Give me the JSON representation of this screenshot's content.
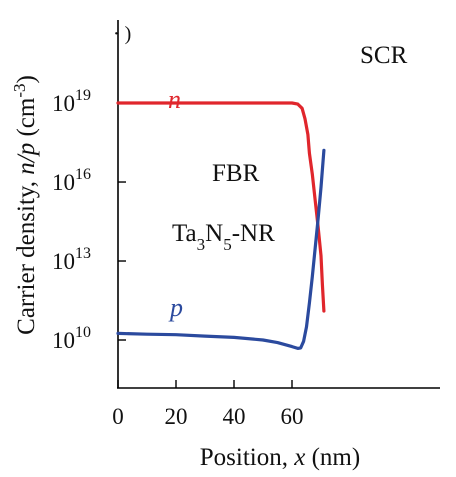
{
  "chart_data": {
    "type": "line",
    "xlabel": {
      "main": "Position, ",
      "var": "x",
      "unit": " (nm)"
    },
    "ylabel": {
      "main": "Carrier density, ",
      "var": "n/p",
      "unit": " (cm",
      "exp": "-3",
      "close": ")"
    },
    "xlim": [
      0,
      80
    ],
    "ylim_log10": [
      8.5,
      21
    ],
    "y_scale": "log",
    "grid": false,
    "x_ticks": [
      {
        "value": 0,
        "label": "0"
      },
      {
        "value": 20,
        "label": "20"
      },
      {
        "value": 40,
        "label": "40"
      },
      {
        "value": 60,
        "label": "60"
      }
    ],
    "y_ticks": [
      {
        "exp": 10,
        "base": "10",
        "sup": "10"
      },
      {
        "exp": 13,
        "base": "10",
        "sup": "13"
      },
      {
        "exp": 16,
        "base": "10",
        "sup": "16"
      },
      {
        "exp": 19,
        "base": "10",
        "sup": "19"
      }
    ],
    "series": [
      {
        "name": "n",
        "color": "#e0262c",
        "x": [
          0,
          10,
          20,
          30,
          40,
          50,
          60,
          62,
          63.5,
          64.5,
          65.5,
          66,
          67,
          68,
          69,
          70,
          70.5,
          71
        ],
        "log10_y": [
          19.0,
          19.0,
          19.0,
          19.0,
          19.0,
          19.0,
          19.0,
          18.96,
          18.8,
          18.4,
          17.8,
          17.1,
          16.3,
          15.3,
          14.3,
          13.2,
          12.1,
          11.1
        ]
      },
      {
        "name": "p",
        "color": "#2b4a9e",
        "x": [
          0,
          10,
          20,
          30,
          40,
          50,
          55,
          60,
          62,
          63,
          64,
          65,
          66,
          67,
          68,
          69,
          70,
          71
        ],
        "log10_y": [
          10.25,
          10.22,
          10.2,
          10.15,
          10.1,
          10.0,
          9.9,
          9.75,
          9.68,
          9.7,
          9.95,
          10.5,
          11.4,
          12.4,
          13.5,
          14.6,
          15.8,
          17.2
        ]
      }
    ],
    "annotations": [
      {
        "id": "scr",
        "text": "SCR"
      },
      {
        "id": "fbr",
        "text": "FBR"
      },
      {
        "id": "material",
        "parts": [
          "Ta",
          "3",
          "N",
          "5",
          "-NR"
        ]
      }
    ],
    "clipped_top_text": "· )"
  }
}
